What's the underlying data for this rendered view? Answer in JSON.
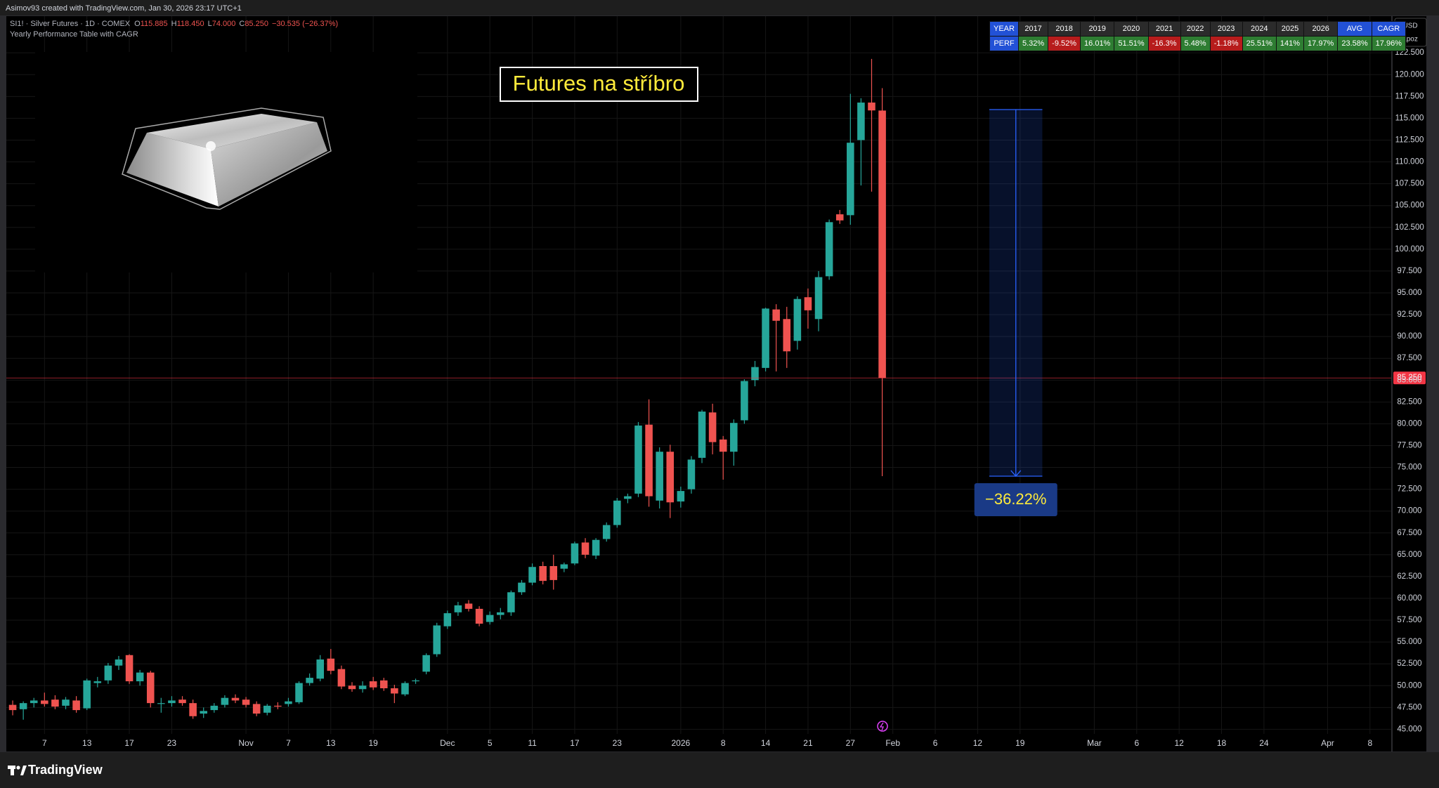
{
  "top_bar": {
    "text": "Asimov93 created with TradingView.com, Jan 30, 2026 23:17 UTC+1"
  },
  "legend": {
    "symbol": "SI1! · Silver Futures · 1D · COMEX",
    "items": [
      {
        "key": "O",
        "value": "115.885"
      },
      {
        "key": "H",
        "value": "118.450"
      },
      {
        "key": "L",
        "value": "74.000"
      },
      {
        "key": "C",
        "value": "85.250"
      }
    ],
    "change": "−30.535 (−26.37%)",
    "indicator": "Yearly Performance Table with CAGR"
  },
  "price_axis": {
    "currency": "USD",
    "mode": "apoz"
  },
  "performance_table": {
    "header": [
      "YEAR",
      "2017",
      "2018",
      "2019",
      "2020",
      "2021",
      "2022",
      "2023",
      "2024",
      "2025",
      "2026",
      "AVG",
      "CAGR"
    ],
    "row": [
      "PERF",
      "5.32%",
      "-9.52%",
      "16.01%",
      "51.51%",
      "-16.3%",
      "5.48%",
      "-1.18%",
      "25.51%",
      "141%",
      "17.97%",
      "23.58%",
      "17.96%"
    ]
  },
  "footer": {
    "brand": "TradingView"
  },
  "chart_data": {
    "type": "candlestick",
    "title": "Futures na stříbro",
    "up_color": "#26a69a",
    "down_color": "#ef5350",
    "open": [
      47.8,
      47.3,
      48.0,
      48.3,
      48.4,
      47.7,
      48.3,
      47.4,
      50.3,
      50.6,
      52.3,
      53.5,
      50.5,
      51.5,
      47.9,
      48.0,
      48.4,
      48.0,
      46.8,
      47.2,
      47.8,
      48.6,
      48.4,
      47.9,
      46.9,
      47.7,
      47.9,
      48.1,
      50.3,
      50.8,
      53.1,
      51.9,
      50.0,
      49.6,
      50.5,
      50.6,
      49.7,
      49.0,
      50.5,
      51.6,
      53.6,
      56.8,
      58.4,
      59.4,
      58.8,
      57.3,
      58.1,
      58.4,
      60.7,
      61.8,
      63.7,
      63.7,
      63.4,
      64.0,
      66.4,
      64.9,
      66.8,
      68.4,
      71.4,
      72.0,
      79.9,
      71.2,
      76.8,
      71.1,
      72.5,
      76.1,
      81.3,
      78.2,
      76.8,
      80.4,
      85.0,
      86.4,
      93.1,
      92.0,
      89.5,
      94.5,
      92.0,
      96.9,
      104.0,
      103.9,
      112.5,
      116.8,
      115.885
    ],
    "high": [
      48.3,
      48.2,
      48.6,
      49.2,
      48.9,
      48.7,
      48.8,
      50.8,
      51.0,
      52.6,
      53.4,
      53.6,
      51.8,
      51.7,
      48.6,
      48.8,
      48.8,
      48.4,
      47.5,
      48.0,
      48.9,
      49.0,
      48.7,
      48.2,
      47.9,
      48.1,
      48.6,
      50.5,
      51.4,
      53.5,
      54.2,
      52.3,
      50.4,
      50.5,
      51.0,
      50.9,
      50.1,
      50.5,
      50.8,
      53.7,
      57.2,
      58.6,
      59.6,
      59.8,
      59.1,
      58.5,
      58.9,
      60.9,
      62.1,
      64.0,
      64.2,
      65.0,
      64.1,
      66.5,
      66.9,
      66.9,
      68.7,
      71.5,
      72.0,
      80.2,
      82.8,
      77.3,
      77.6,
      72.8,
      76.3,
      81.6,
      82.3,
      78.6,
      80.5,
      85.1,
      87.2,
      93.3,
      93.7,
      93.4,
      94.6,
      95.5,
      97.5,
      103.4,
      104.5,
      117.8,
      117.3,
      121.8,
      118.45
    ],
    "low": [
      46.6,
      46.1,
      47.5,
      47.6,
      47.3,
      47.3,
      46.9,
      47.2,
      49.8,
      50.2,
      51.8,
      50.2,
      50.0,
      47.5,
      46.9,
      47.6,
      47.7,
      46.2,
      46.3,
      46.9,
      47.5,
      48.0,
      47.5,
      46.5,
      46.6,
      47.3,
      47.6,
      47.9,
      50.0,
      50.5,
      51.3,
      49.6,
      49.3,
      49.2,
      49.5,
      49.4,
      48.0,
      48.8,
      50.2,
      51.3,
      53.3,
      56.5,
      58.0,
      58.5,
      56.8,
      57.0,
      57.6,
      58.0,
      60.4,
      61.5,
      61.6,
      61.0,
      63.0,
      63.8,
      64.6,
      64.5,
      66.5,
      68.1,
      70.9,
      71.6,
      70.5,
      70.3,
      69.2,
      70.4,
      72.0,
      75.5,
      76.5,
      73.6,
      75.2,
      80.0,
      84.3,
      86.0,
      86.0,
      86.4,
      88.5,
      90.9,
      90.6,
      96.5,
      102.9,
      102.8,
      107.3,
      106.6,
      74.0
    ],
    "close": [
      47.2,
      48.0,
      48.3,
      47.9,
      47.6,
      48.4,
      47.2,
      50.6,
      50.5,
      52.3,
      53.0,
      50.5,
      51.5,
      48.0,
      48.0,
      48.3,
      48.0,
      46.5,
      47.1,
      47.7,
      48.6,
      48.3,
      47.8,
      46.8,
      47.7,
      47.6,
      48.2,
      50.3,
      50.9,
      53.0,
      51.7,
      49.9,
      49.6,
      50.0,
      49.8,
      49.7,
      49.1,
      50.3,
      50.6,
      53.5,
      56.9,
      58.3,
      59.2,
      58.8,
      57.1,
      58.1,
      58.4,
      60.7,
      61.8,
      63.6,
      62.0,
      62.1,
      63.9,
      66.3,
      65.0,
      66.7,
      68.4,
      71.2,
      71.7,
      79.8,
      71.7,
      76.8,
      71.0,
      72.3,
      75.9,
      81.4,
      77.9,
      76.8,
      80.1,
      84.9,
      86.5,
      93.2,
      91.8,
      88.3,
      94.3,
      93.0,
      96.8,
      103.1,
      103.3,
      112.2,
      116.8,
      115.9,
      85.25
    ],
    "xlim": [
      -0.6,
      130
    ],
    "xticks": [
      {
        "value": 3,
        "label": "7"
      },
      {
        "value": 7,
        "label": "13"
      },
      {
        "value": 11,
        "label": "17"
      },
      {
        "value": 15,
        "label": "23"
      },
      {
        "value": 22,
        "label": "Nov"
      },
      {
        "value": 26,
        "label": "7"
      },
      {
        "value": 30,
        "label": "13"
      },
      {
        "value": 34,
        "label": "19"
      },
      {
        "value": 41,
        "label": "Dec"
      },
      {
        "value": 45,
        "label": "5"
      },
      {
        "value": 49,
        "label": "11"
      },
      {
        "value": 53,
        "label": "17"
      },
      {
        "value": 57,
        "label": "23"
      },
      {
        "value": 63,
        "label": "2026"
      },
      {
        "value": 67,
        "label": "8"
      },
      {
        "value": 71,
        "label": "14"
      },
      {
        "value": 75,
        "label": "21"
      },
      {
        "value": 79,
        "label": "27"
      },
      {
        "value": 83,
        "label": "Feb"
      },
      {
        "value": 87,
        "label": "6"
      },
      {
        "value": 91,
        "label": "12"
      },
      {
        "value": 95,
        "label": "19"
      },
      {
        "value": 102,
        "label": "Mar"
      },
      {
        "value": 106,
        "label": "6"
      },
      {
        "value": 110,
        "label": "12"
      },
      {
        "value": 114,
        "label": "18"
      },
      {
        "value": 118,
        "label": "24"
      },
      {
        "value": 124,
        "label": "Apr"
      },
      {
        "value": 128,
        "label": "8"
      }
    ],
    "ylim": [
      44.47,
      126.7
    ],
    "yticks": [
      {
        "value": 45,
        "label": "45.000"
      },
      {
        "value": 47.5,
        "label": "47.500"
      },
      {
        "value": 50,
        "label": "50.000"
      },
      {
        "value": 52.5,
        "label": "52.500"
      },
      {
        "value": 55,
        "label": "55.000"
      },
      {
        "value": 57.5,
        "label": "57.500"
      },
      {
        "value": 60,
        "label": "60.000"
      },
      {
        "value": 62.5,
        "label": "62.500"
      },
      {
        "value": 65,
        "label": "65.000"
      },
      {
        "value": 67.5,
        "label": "67.500"
      },
      {
        "value": 70,
        "label": "70.000"
      },
      {
        "value": 72.5,
        "label": "72.500"
      },
      {
        "value": 75,
        "label": "75.000"
      },
      {
        "value": 77.5,
        "label": "77.500"
      },
      {
        "value": 80,
        "label": "80.000"
      },
      {
        "value": 82.5,
        "label": "82.500"
      },
      {
        "value": 85,
        "label": "85.000"
      },
      {
        "value": 87.5,
        "label": "87.500"
      },
      {
        "value": 90,
        "label": "90.000"
      },
      {
        "value": 92.5,
        "label": "92.500"
      },
      {
        "value": 95,
        "label": "95.000"
      },
      {
        "value": 97.5,
        "label": "97.500"
      },
      {
        "value": 100,
        "label": "100.000"
      },
      {
        "value": 102.5,
        "label": "102.500"
      },
      {
        "value": 105,
        "label": "105.000"
      },
      {
        "value": 107.5,
        "label": "107.500"
      },
      {
        "value": 110,
        "label": "110.000"
      },
      {
        "value": 112.5,
        "label": "112.500"
      },
      {
        "value": 115,
        "label": "115.000"
      },
      {
        "value": 117.5,
        "label": "117.500"
      },
      {
        "value": 120,
        "label": "120.000"
      },
      {
        "value": 122.5,
        "label": "122.500"
      }
    ],
    "grid": true,
    "last_price": {
      "value": 85.25,
      "label": "85.250",
      "color": "#f23645"
    },
    "measure": {
      "from": 116.0,
      "to": 74.0,
      "x_range": [
        92.1,
        97.1
      ],
      "label": "−36.22%"
    }
  }
}
